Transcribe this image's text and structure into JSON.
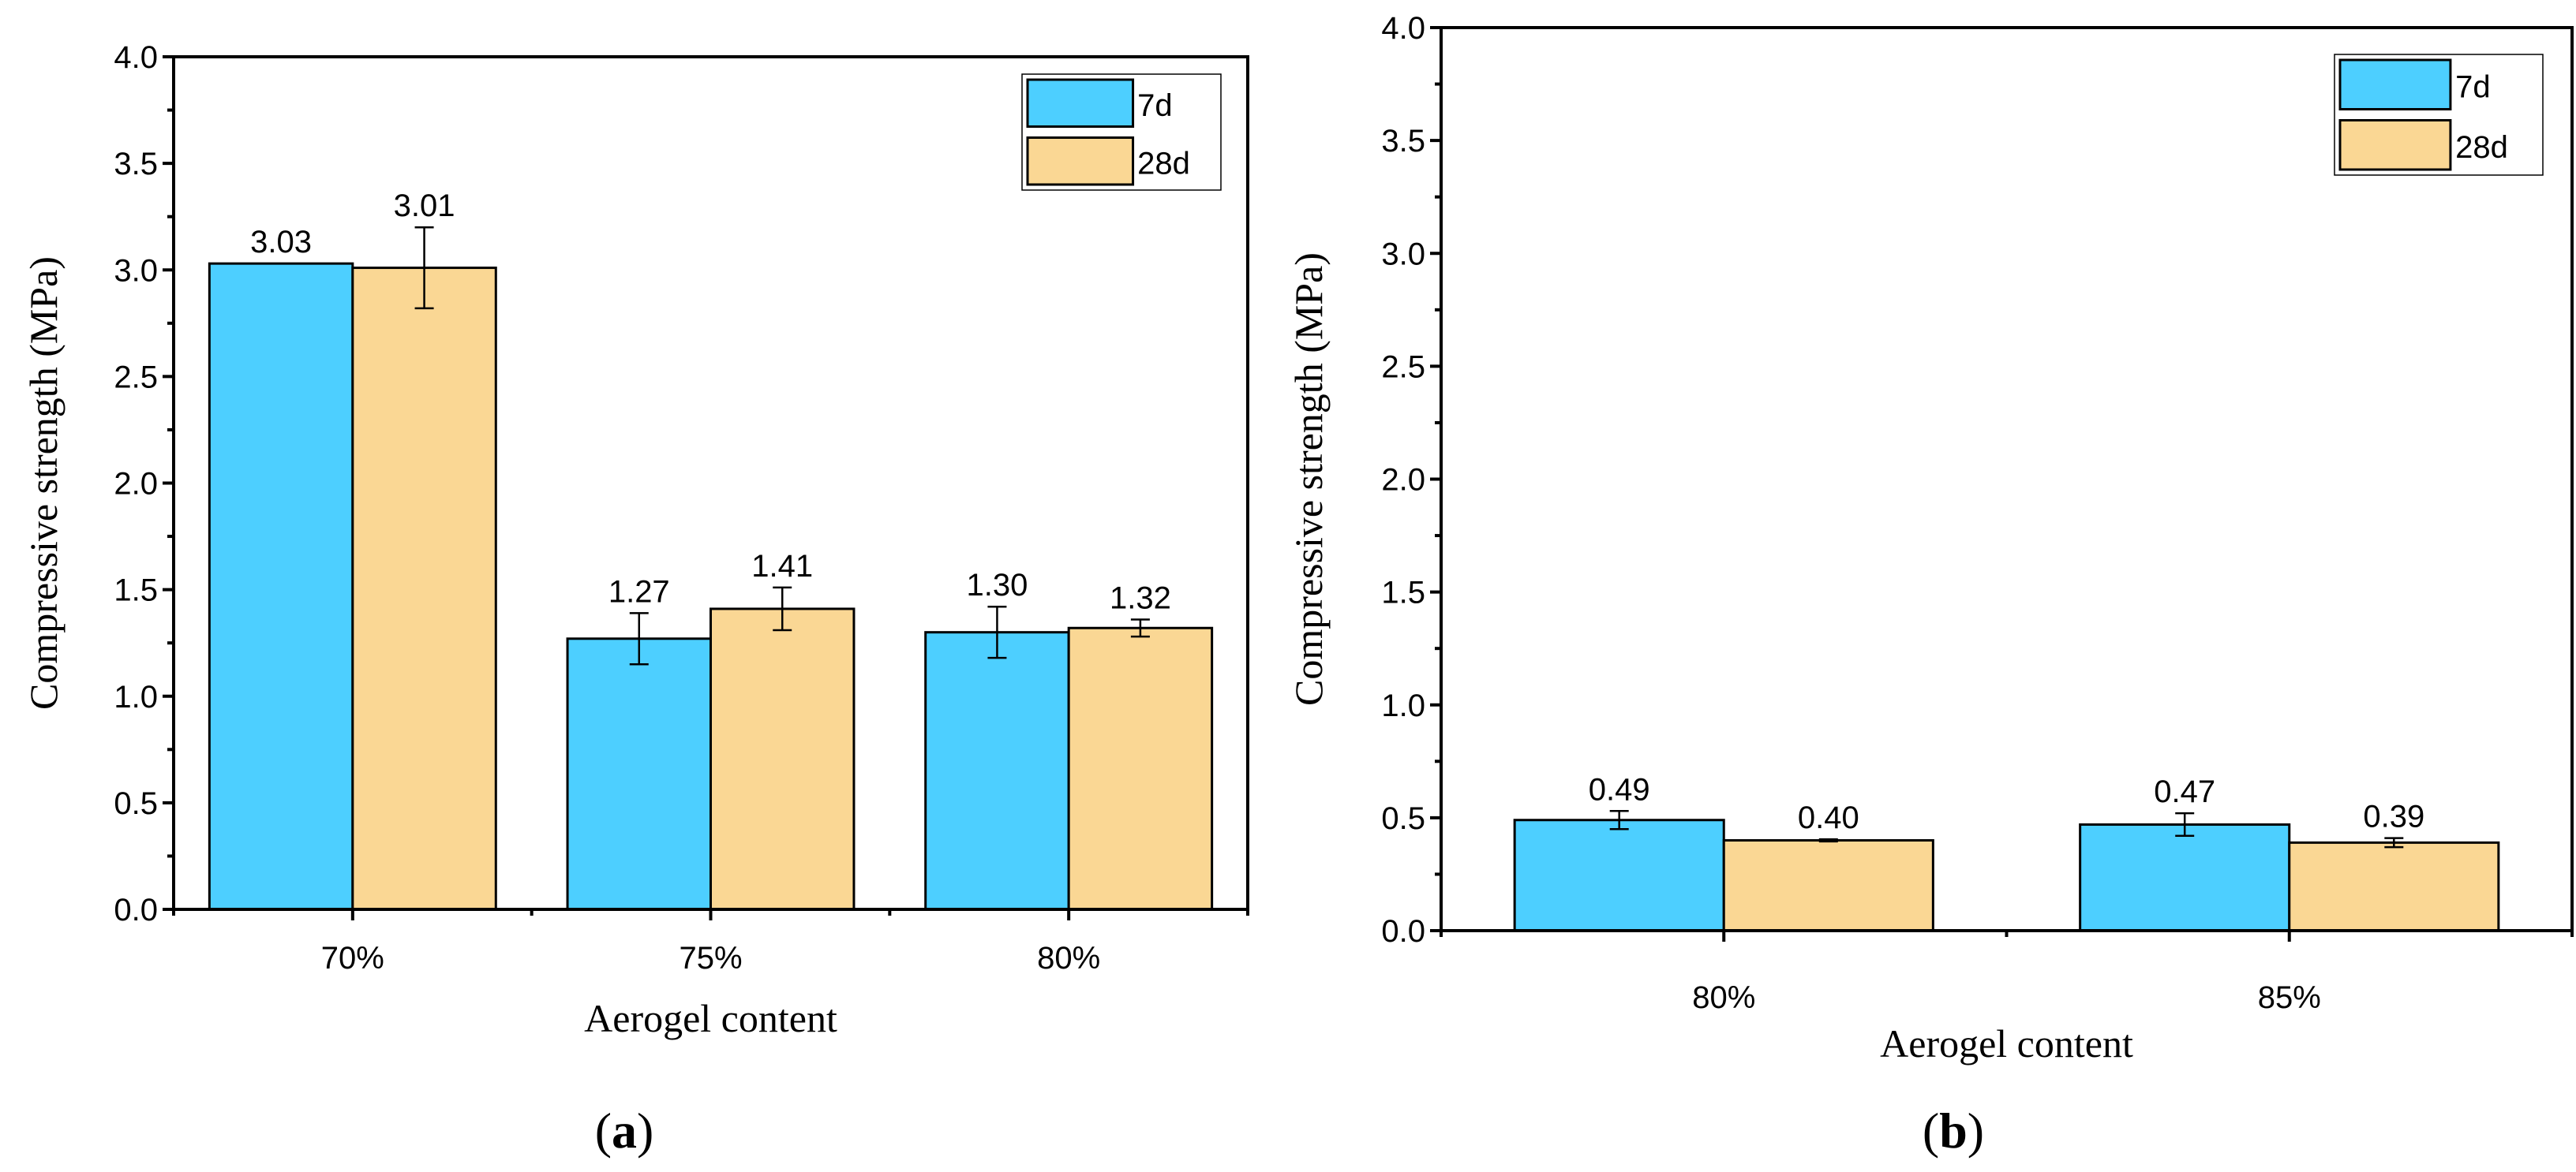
{
  "colors": {
    "7d": "#4dcfff",
    "28d": "#fad794",
    "stroke": "#000000"
  },
  "chart_data": [
    {
      "type": "bar",
      "panel_label": "a",
      "categories": [
        "70%",
        "75%",
        "80%"
      ],
      "series": [
        {
          "name": "7d",
          "values": [
            3.03,
            1.27,
            1.3
          ],
          "errors": [
            0,
            0.12,
            0.12
          ],
          "labels": [
            "3.03",
            "1.27",
            "1.30"
          ]
        },
        {
          "name": "28d",
          "values": [
            3.01,
            1.41,
            1.32
          ],
          "errors": [
            0.19,
            0.1,
            0.04
          ],
          "labels": [
            "3.01",
            "1.41",
            "1.32"
          ]
        }
      ],
      "xlabel": "Aerogel content",
      "ylabel": "Compressive strength (MPa)",
      "ylim": [
        0,
        4.0
      ],
      "yticks": [
        "0.0",
        "0.5",
        "1.0",
        "1.5",
        "2.0",
        "2.5",
        "3.0",
        "3.5",
        "4.0"
      ],
      "grid": false,
      "legend": "top-right"
    },
    {
      "type": "bar",
      "panel_label": "b",
      "categories": [
        "80%",
        "85%"
      ],
      "series": [
        {
          "name": "7d",
          "values": [
            0.49,
            0.47
          ],
          "errors": [
            0.04,
            0.05
          ],
          "labels": [
            "0.49",
            "0.47"
          ]
        },
        {
          "name": "28d",
          "values": [
            0.4,
            0.39
          ],
          "errors": [
            0.005,
            0.02
          ],
          "labels": [
            "0.40",
            "0.39"
          ]
        }
      ],
      "xlabel": "Aerogel content",
      "ylabel": "Compressive strength (MPa)",
      "ylim": [
        0,
        4.0
      ],
      "yticks": [
        "0.0",
        "0.5",
        "1.0",
        "1.5",
        "2.0",
        "2.5",
        "3.0",
        "3.5",
        "4.0"
      ],
      "grid": false,
      "legend": "top-right"
    }
  ]
}
